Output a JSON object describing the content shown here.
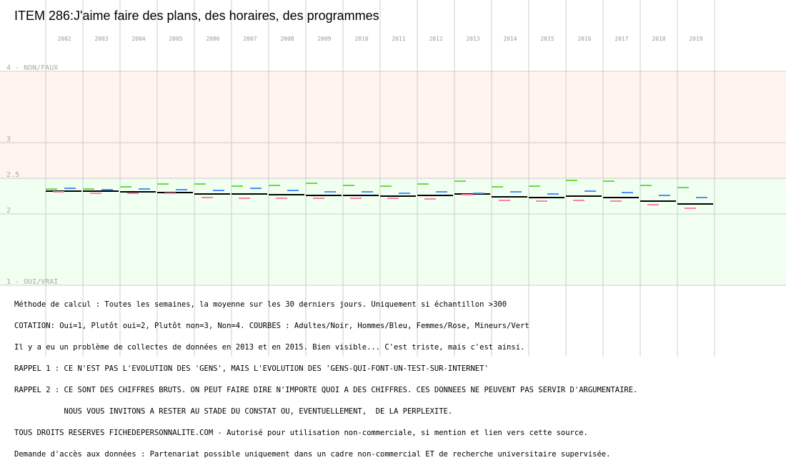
{
  "chart_data": {
    "type": "line",
    "title": "ITEM 286:J'aime faire des plans, des horaires, des programmes",
    "categories": [
      "2002",
      "2003",
      "2004",
      "2005",
      "2006",
      "2007",
      "2008",
      "2009",
      "2010",
      "2011",
      "2012",
      "2013",
      "2014",
      "2015",
      "2016",
      "2017",
      "2018",
      "2019"
    ],
    "y_tick_labels": [
      {
        "value": 4,
        "label": "4 - NON/FAUX"
      },
      {
        "value": 3,
        "label": "3"
      },
      {
        "value": 2.5,
        "label": "2.5"
      },
      {
        "value": 2,
        "label": "2"
      },
      {
        "value": 1,
        "label": "1 - OUI/VRAI"
      }
    ],
    "ylim": [
      1,
      4
    ],
    "bands": [
      {
        "from": 2.5,
        "to": 4,
        "color": "#fff4ee"
      },
      {
        "from": 1,
        "to": 2.5,
        "color": "#f0fff0"
      }
    ],
    "series": [
      {
        "color": "#000000",
        "values": [
          2.32,
          2.32,
          2.31,
          2.3,
          2.28,
          2.28,
          2.27,
          2.26,
          2.26,
          2.25,
          2.26,
          2.28,
          2.24,
          2.23,
          2.25,
          2.23,
          2.18,
          2.14
        ]
      },
      {
        "color": "#4a90ff",
        "values": [
          2.36,
          2.34,
          2.35,
          2.34,
          2.33,
          2.36,
          2.33,
          2.31,
          2.31,
          2.29,
          2.31,
          2.29,
          2.31,
          2.28,
          2.32,
          2.3,
          2.26,
          2.23
        ]
      },
      {
        "color": "#ff80b0",
        "values": [
          2.31,
          2.29,
          2.29,
          2.29,
          2.23,
          2.22,
          2.22,
          2.22,
          2.22,
          2.22,
          2.21,
          2.27,
          2.19,
          2.18,
          2.19,
          2.18,
          2.13,
          2.08
        ]
      },
      {
        "color": "#66dd44",
        "values": [
          2.35,
          2.35,
          2.38,
          2.42,
          2.42,
          2.39,
          2.4,
          2.43,
          2.4,
          2.39,
          2.42,
          2.46,
          2.38,
          2.39,
          2.47,
          2.46,
          2.4,
          2.37
        ]
      }
    ],
    "grid": true
  },
  "notes": [
    "Méthode de calcul : Toutes les semaines, la moyenne sur les 30 derniers jours. Uniquement si échantillon >300",
    "COTATION: Oui=1, Plutôt oui=2, Plutôt non=3, Non=4. COURBES : Adultes/Noir, Hommes/Bleu, Femmes/Rose, Mineurs/Vert",
    "Il y a eu un problème de collectes de données en 2013 et en 2015. Bien visible... C'est triste, mais c'est ainsi.",
    "RAPPEL 1 : CE N'EST PAS L'EVOLUTION DES 'GENS', MAIS L'EVOLUTION DES 'GENS-QUI-FONT-UN-TEST-SUR-INTERNET'",
    "RAPPEL 2 : CE SONT DES CHIFFRES BRUTS. ON PEUT FAIRE DIRE N'IMPORTE QUOI A DES CHIFFRES. CES DONNEES NE PEUVENT PAS SERVIR D'ARGUMENTAIRE.",
    "           NOUS VOUS INVITONS A RESTER AU STADE DU CONSTAT OU, EVENTUELLEMENT,  DE LA PERPLEXITE.",
    "TOUS DROITS RESERVES FICHEDEPERSONNALITE.COM - Autorisé pour utilisation non-commerciale, si mention et lien vers cette source.",
    "Demande d'accès aux données : Partenariat possible uniquement dans un cadre non-commercial ET de recherche universitaire supervisée."
  ]
}
